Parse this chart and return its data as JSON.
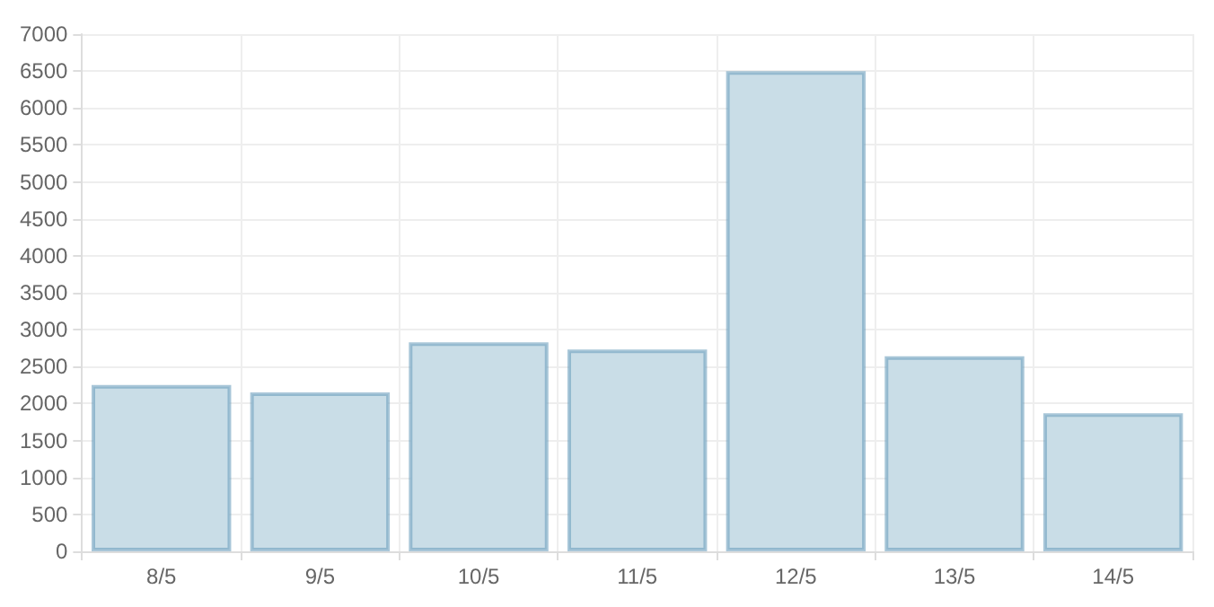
{
  "chart_data": {
    "type": "bar",
    "categories": [
      "8/5",
      "9/5",
      "10/5",
      "11/5",
      "12/5",
      "13/5",
      "14/5"
    ],
    "values": [
      2250,
      2150,
      2830,
      2730,
      6500,
      2640,
      1870
    ],
    "color": "#c9dde7",
    "ylim": [
      0,
      7000
    ],
    "yticks": [
      0,
      500,
      1000,
      1500,
      2000,
      2500,
      3000,
      3500,
      4000,
      4500,
      5000,
      5500,
      6000,
      6500,
      7000
    ],
    "grid": true
  }
}
